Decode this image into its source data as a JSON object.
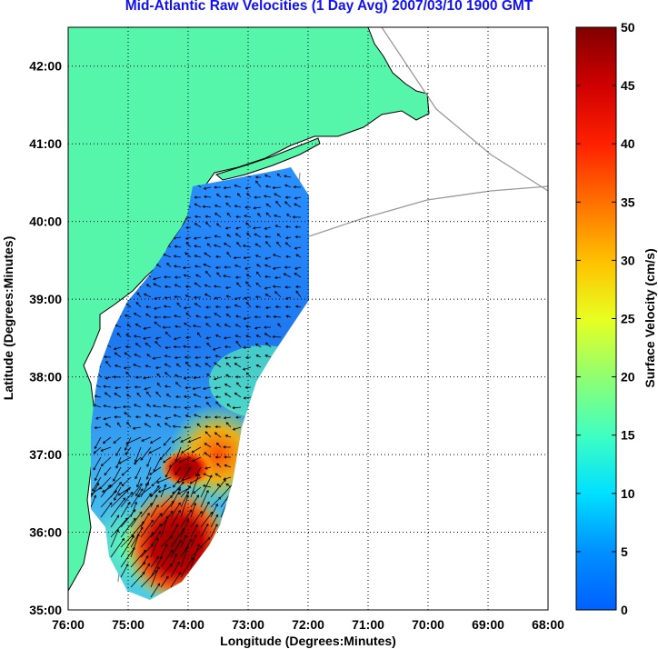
{
  "title": "Mid-Atlantic Raw Velocities (1 Day Avg) 2007/03/10 1900 GMT",
  "xlabel": "Longitude (Degrees:Minutes)",
  "ylabel": "Latitude (Degrees:Minutes)",
  "x_ticks": [
    "76:00",
    "75:00",
    "74:00",
    "73:00",
    "72:00",
    "71:00",
    "70:00",
    "69:00",
    "68:00"
  ],
  "y_ticks": [
    "35:00",
    "36:00",
    "37:00",
    "38:00",
    "39:00",
    "40:00",
    "41:00",
    "42:00"
  ],
  "colorbar": {
    "label": "Surface Velocity (cm/s)",
    "ticks": [
      "0",
      "5",
      "10",
      "15",
      "20",
      "25",
      "30",
      "35",
      "40",
      "45",
      "50"
    ],
    "range": [
      0,
      50
    ]
  },
  "colors": {
    "land": "#55f5aa",
    "title": "#1010ff"
  }
}
